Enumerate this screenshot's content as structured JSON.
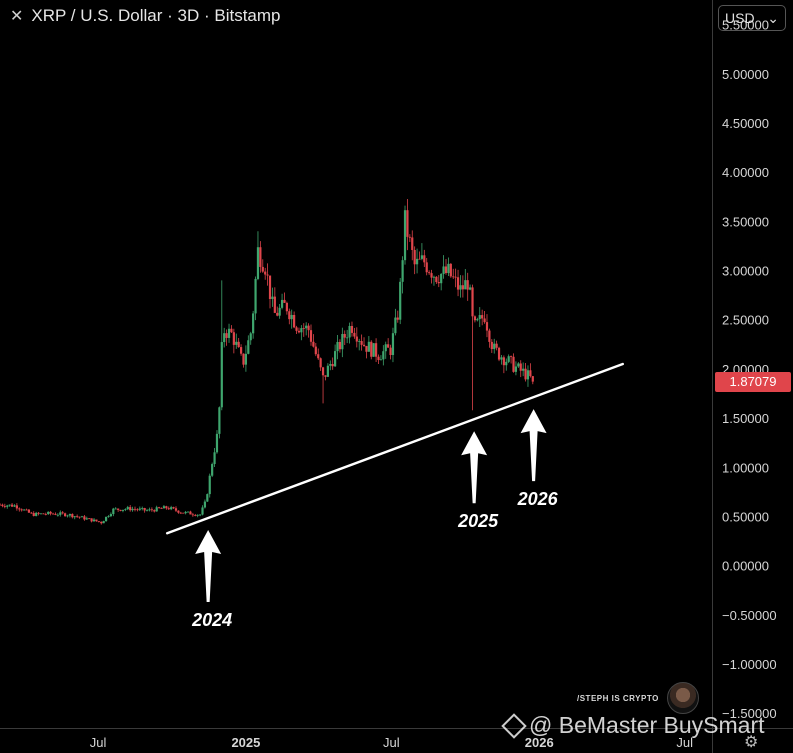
{
  "header": {
    "title": "XRP / U.S. Dollar · 3D · Bitstamp",
    "close_icon": "close-icon"
  },
  "currency_select": {
    "value": "USD",
    "icon": "chevron-down-icon"
  },
  "last_price": "1.87079",
  "watermark": {
    "text": "@ BeMaster BuySmart",
    "icon": "diamond-logo-icon"
  },
  "credit": {
    "text": "/STEPH IS CRYPTO"
  },
  "settings_icon": "gear-icon",
  "colors": {
    "up": "#3fa66e",
    "down": "#e0454b",
    "background": "#000000",
    "trendline": "#ffffff",
    "price_tag": "#e0454b"
  },
  "chart_data": {
    "type": "candlestick",
    "y_ticks": [
      "5.50000",
      "5.00000",
      "4.50000",
      "4.00000",
      "3.50000",
      "3.00000",
      "2.50000",
      "2.00000",
      "1.50000",
      "1.00000",
      "0.50000",
      "0.00000",
      "−0.50000",
      "−1.00000",
      "−1.50000"
    ],
    "y_tick_values": [
      5.5,
      5.0,
      4.5,
      4.0,
      3.5,
      3.0,
      2.5,
      2.0,
      1.5,
      1.0,
      0.5,
      0.0,
      -0.5,
      -1.0,
      -1.5
    ],
    "ylim": [
      -1.65,
      5.75
    ],
    "x_ticks": [
      {
        "label": "Jul",
        "date": "2024-07-01",
        "bold": false
      },
      {
        "label": "2025",
        "date": "2025-01-01",
        "bold": true
      },
      {
        "label": "Jul",
        "date": "2025-07-01",
        "bold": false
      },
      {
        "label": "2026",
        "date": "2026-01-01",
        "bold": true
      },
      {
        "label": "Jul",
        "date": "2026-07-01",
        "bold": false
      }
    ],
    "xlim": [
      "2024-03-01",
      "2026-08-04"
    ],
    "price_path": [
      [
        "2024-03-01",
        0.62
      ],
      [
        "2024-03-20",
        0.61
      ],
      [
        "2024-04-10",
        0.52
      ],
      [
        "2024-05-01",
        0.53
      ],
      [
        "2024-05-25",
        0.52
      ],
      [
        "2024-06-15",
        0.48
      ],
      [
        "2024-07-05",
        0.44
      ],
      [
        "2024-07-20",
        0.57
      ],
      [
        "2024-08-10",
        0.58
      ],
      [
        "2024-09-01",
        0.56
      ],
      [
        "2024-09-25",
        0.59
      ],
      [
        "2024-10-15",
        0.54
      ],
      [
        "2024-11-05",
        0.52
      ],
      [
        "2024-11-12",
        0.65
      ],
      [
        "2024-11-20",
        1.05
      ],
      [
        "2024-11-28",
        1.4
      ],
      [
        "2024-12-03",
        2.4
      ],
      [
        "2024-12-15",
        2.35
      ],
      [
        "2024-12-28",
        2.05
      ],
      [
        "2025-01-08",
        2.4
      ],
      [
        "2025-01-16",
        3.2
      ],
      [
        "2025-01-25",
        3.05
      ],
      [
        "2025-02-05",
        2.55
      ],
      [
        "2025-02-20",
        2.65
      ],
      [
        "2025-03-05",
        2.45
      ],
      [
        "2025-03-20",
        2.4
      ],
      [
        "2025-04-07",
        1.9
      ],
      [
        "2025-04-25",
        2.2
      ],
      [
        "2025-05-12",
        2.45
      ],
      [
        "2025-05-28",
        2.25
      ],
      [
        "2025-06-15",
        2.15
      ],
      [
        "2025-06-30",
        2.2
      ],
      [
        "2025-07-10",
        2.6
      ],
      [
        "2025-07-18",
        3.5
      ],
      [
        "2025-07-30",
        3.05
      ],
      [
        "2025-08-10",
        3.1
      ],
      [
        "2025-08-25",
        2.95
      ],
      [
        "2025-09-10",
        2.98
      ],
      [
        "2025-09-25",
        2.8
      ],
      [
        "2025-10-05",
        2.9
      ],
      [
        "2025-10-11",
        2.4
      ],
      [
        "2025-10-25",
        2.55
      ],
      [
        "2025-11-05",
        2.2
      ],
      [
        "2025-11-20",
        2.1
      ],
      [
        "2025-12-05",
        2.0
      ],
      [
        "2025-12-15",
        1.95
      ],
      [
        "2025-12-25",
        1.87079
      ]
    ],
    "wick_extremes": [
      {
        "date": "2024-12-03",
        "high": 2.9
      },
      {
        "date": "2025-01-16",
        "high": 3.4
      },
      {
        "date": "2025-04-07",
        "low": 1.65
      },
      {
        "date": "2025-07-18",
        "high": 3.66
      },
      {
        "date": "2025-10-11",
        "low": 1.58
      }
    ],
    "trendline": {
      "start": [
        "2024-09-25",
        0.33
      ],
      "end": [
        "2026-04-15",
        2.05
      ]
    },
    "annotations": [
      {
        "label": "2024",
        "date": "2024-11-15"
      },
      {
        "label": "2025",
        "date": "2025-10-12"
      },
      {
        "label": "2026",
        "date": "2025-12-25"
      }
    ]
  }
}
